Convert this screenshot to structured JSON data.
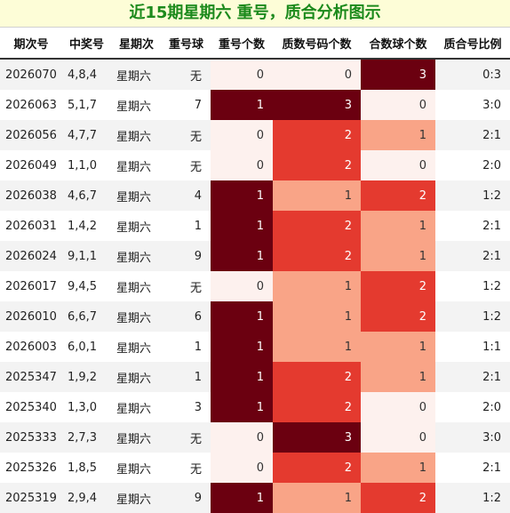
{
  "title": "近15期星期六 重号，质合分析图示",
  "headers": [
    "期次号",
    "中奖号",
    "星期次",
    "重号球",
    "重号个数",
    "质数号码个数",
    "合数球个数",
    "质合号比例"
  ],
  "rows": [
    {
      "period": "2026070",
      "numbers": "4,8,4",
      "weekday": "星期六",
      "repeat_ball": "无",
      "repeat_count": 0,
      "prime_count": 0,
      "composite_count": 3,
      "ratio": "0:3"
    },
    {
      "period": "2026063",
      "numbers": "5,1,7",
      "weekday": "星期六",
      "repeat_ball": "7",
      "repeat_count": 1,
      "prime_count": 3,
      "composite_count": 0,
      "ratio": "3:0"
    },
    {
      "period": "2026056",
      "numbers": "4,7,7",
      "weekday": "星期六",
      "repeat_ball": "无",
      "repeat_count": 0,
      "prime_count": 2,
      "composite_count": 1,
      "ratio": "2:1"
    },
    {
      "period": "2026049",
      "numbers": "1,1,0",
      "weekday": "星期六",
      "repeat_ball": "无",
      "repeat_count": 0,
      "prime_count": 2,
      "composite_count": 0,
      "ratio": "2:0"
    },
    {
      "period": "2026038",
      "numbers": "4,6,7",
      "weekday": "星期六",
      "repeat_ball": "4",
      "repeat_count": 1,
      "prime_count": 1,
      "composite_count": 2,
      "ratio": "1:2"
    },
    {
      "period": "2026031",
      "numbers": "1,4,2",
      "weekday": "星期六",
      "repeat_ball": "1",
      "repeat_count": 1,
      "prime_count": 2,
      "composite_count": 1,
      "ratio": "2:1"
    },
    {
      "period": "2026024",
      "numbers": "9,1,1",
      "weekday": "星期六",
      "repeat_ball": "9",
      "repeat_count": 1,
      "prime_count": 2,
      "composite_count": 1,
      "ratio": "2:1"
    },
    {
      "period": "2026017",
      "numbers": "9,4,5",
      "weekday": "星期六",
      "repeat_ball": "无",
      "repeat_count": 0,
      "prime_count": 1,
      "composite_count": 2,
      "ratio": "1:2"
    },
    {
      "period": "2026010",
      "numbers": "6,6,7",
      "weekday": "星期六",
      "repeat_ball": "6",
      "repeat_count": 1,
      "prime_count": 1,
      "composite_count": 2,
      "ratio": "1:2"
    },
    {
      "period": "2026003",
      "numbers": "6,0,1",
      "weekday": "星期六",
      "repeat_ball": "1",
      "repeat_count": 1,
      "prime_count": 1,
      "composite_count": 1,
      "ratio": "1:1"
    },
    {
      "period": "2025347",
      "numbers": "1,9,2",
      "weekday": "星期六",
      "repeat_ball": "1",
      "repeat_count": 1,
      "prime_count": 2,
      "composite_count": 1,
      "ratio": "2:1"
    },
    {
      "period": "2025340",
      "numbers": "1,3,0",
      "weekday": "星期六",
      "repeat_ball": "3",
      "repeat_count": 1,
      "prime_count": 2,
      "composite_count": 0,
      "ratio": "2:0"
    },
    {
      "period": "2025333",
      "numbers": "2,7,3",
      "weekday": "星期六",
      "repeat_ball": "无",
      "repeat_count": 0,
      "prime_count": 3,
      "composite_count": 0,
      "ratio": "3:0"
    },
    {
      "period": "2025326",
      "numbers": "1,8,5",
      "weekday": "星期六",
      "repeat_ball": "无",
      "repeat_count": 0,
      "prime_count": 2,
      "composite_count": 1,
      "ratio": "2:1"
    },
    {
      "period": "2025319",
      "numbers": "2,9,4",
      "weekday": "星期六",
      "repeat_ball": "9",
      "repeat_count": 1,
      "prime_count": 1,
      "composite_count": 2,
      "ratio": "1:2"
    }
  ],
  "colors": {
    "title_text": "#1c8a1c",
    "title_bg": "#fdfdd7",
    "heat_0": "#fdf1ee",
    "heat_1": "#f9a487",
    "heat_2": "#e43a2f",
    "heat_3": "#6b0010"
  }
}
